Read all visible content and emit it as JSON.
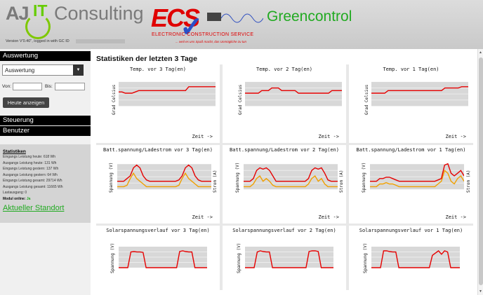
{
  "header": {
    "logo_aj": "AJ",
    "logo_it": "IT",
    "logo_consulting": "Consulting",
    "version_text": "Version V'0.40\", logged in with GC ID",
    "ecs_logo": "ECS",
    "ecs_subtitle": "ELECTRONIC CONSTRUCTION SERVICE",
    "ecs_tagline": "... weil es uns Spaß macht, das Unmögliche zu tun",
    "greencontrol": "Greencontrol"
  },
  "sidebar": {
    "auswertung_header": "Auswertung",
    "select_value": "Auswertung",
    "von_label": "Von:",
    "bis_label": "Bis:",
    "today_button": "Heute anzeigen",
    "steuerung": "Steuerung",
    "benutzer": "Benutzer",
    "stats": {
      "title": "Statistiken",
      "lines": [
        "Eingangs Leistung heute: 618 Wh",
        "Ausgangs Leistung heute: 131 Wh",
        "Eingangs Leistung gestern: 137 Wh",
        "Ausgangs Leistung gestern: 64 Wh",
        "Eingangs Leistung gesamt: 29714 Wh",
        "Ausgangs Leistung gesamt: 11665 Wh",
        "Lastausgang: 0"
      ],
      "modul_label": "Modul online:",
      "modul_value": "Ja"
    },
    "standort_link": "Aktueller Standort"
  },
  "main": {
    "title": "Statistiken der letzten 3 Tage",
    "panels": [
      {
        "title": "Temp. vor 3 Tag(en)",
        "ylabel": "Grad Celsius",
        "xlabel": "Zeit ->"
      },
      {
        "title": "Temp. vor 2 Tag(en)",
        "ylabel": "Grad Celsius",
        "xlabel": "Zeit ->"
      },
      {
        "title": "Temp. vor 1 Tag(en)",
        "ylabel": "Grad Celsius",
        "xlabel": "Zeit ->"
      },
      {
        "title": "Batt.spannung/Ladestrom vor 3 Tag(en)",
        "ylabel": "Spannung (V)",
        "ylabel_right": "Strom (A)",
        "xlabel": "Zeit ->"
      },
      {
        "title": "Batt.spannung/Ladestrom vor 2 Tag(en)",
        "ylabel": "Spannung (V)",
        "ylabel_right": "Strom (A)",
        "xlabel": "Zeit ->"
      },
      {
        "title": "Batt.spannung/Ladestrom vor 1 Tag(en)",
        "ylabel": "Spannung (V)",
        "ylabel_right": "Strom (A)",
        "xlabel": "Zeit ->"
      },
      {
        "title": "Solarspannungsverlauf vor 3 Tag(en)",
        "ylabel": "Spannung (V)"
      },
      {
        "title": "Solarspannungsverlauf vor 2 Tag(en)",
        "ylabel": "Spannung (V)"
      },
      {
        "title": "Solarspannungsverlauf vor 1 Tag(en)",
        "ylabel": "Spannung (V)"
      }
    ]
  },
  "colors": {
    "series_red": "#e60000",
    "series_orange": "#f0a000",
    "plot_band": "#d8d8d8",
    "brand_green": "#22aa22"
  },
  "chart_data": [
    {
      "type": "line",
      "series": [
        {
          "values": [
            0.55,
            0.55,
            0.5,
            0.5,
            0.5,
            0.55,
            0.6,
            0.6,
            0.6,
            0.6,
            0.6,
            0.6,
            0.6,
            0.6,
            0.6,
            0.6,
            0.6,
            0.6,
            0.6,
            0.6,
            0.6,
            0.75,
            0.75,
            0.75,
            0.75,
            0.75,
            0.75,
            0.75,
            0.75,
            0.75
          ]
        }
      ]
    },
    {
      "type": "line",
      "series": [
        {
          "values": [
            0.5,
            0.5,
            0.5,
            0.5,
            0.5,
            0.6,
            0.6,
            0.6,
            0.7,
            0.7,
            0.7,
            0.6,
            0.6,
            0.6,
            0.6,
            0.6,
            0.5,
            0.5,
            0.5,
            0.5,
            0.5,
            0.5,
            0.5,
            0.5,
            0.5,
            0.5,
            0.6,
            0.6,
            0.6,
            0.6
          ]
        }
      ]
    },
    {
      "type": "line",
      "series": [
        {
          "values": [
            0.5,
            0.5,
            0.5,
            0.5,
            0.5,
            0.6,
            0.6,
            0.6,
            0.6,
            0.6,
            0.6,
            0.6,
            0.6,
            0.6,
            0.6,
            0.6,
            0.6,
            0.6,
            0.6,
            0.6,
            0.6,
            0.6,
            0.7,
            0.7,
            0.7,
            0.7,
            0.7,
            0.75,
            0.75,
            0.75
          ]
        }
      ]
    },
    {
      "type": "line",
      "series": [
        {
          "values": [
            0.3,
            0.3,
            0.3,
            0.4,
            0.5,
            0.8,
            0.9,
            0.8,
            0.5,
            0.35,
            0.3,
            0.3,
            0.3,
            0.3,
            0.3,
            0.3,
            0.3,
            0.3,
            0.3,
            0.35,
            0.5,
            0.8,
            0.9,
            0.8,
            0.5,
            0.35,
            0.3,
            0.3,
            0.3,
            0.3
          ]
        },
        {
          "values": [
            0.1,
            0.1,
            0.1,
            0.15,
            0.4,
            0.6,
            0.4,
            0.3,
            0.2,
            0.1,
            0.1,
            0.1,
            0.1,
            0.1,
            0.1,
            0.1,
            0.1,
            0.1,
            0.1,
            0.15,
            0.4,
            0.6,
            0.4,
            0.3,
            0.2,
            0.1,
            0.1,
            0.1,
            0.1,
            0.1
          ]
        }
      ]
    },
    {
      "type": "line",
      "series": [
        {
          "values": [
            0.3,
            0.3,
            0.3,
            0.4,
            0.7,
            0.8,
            0.75,
            0.8,
            0.7,
            0.5,
            0.3,
            0.3,
            0.3,
            0.3,
            0.3,
            0.3,
            0.3,
            0.3,
            0.3,
            0.3,
            0.4,
            0.7,
            0.8,
            0.75,
            0.8,
            0.6,
            0.35,
            0.3,
            0.3,
            0.3
          ]
        },
        {
          "values": [
            0.1,
            0.1,
            0.1,
            0.2,
            0.4,
            0.5,
            0.3,
            0.4,
            0.3,
            0.15,
            0.1,
            0.1,
            0.1,
            0.1,
            0.1,
            0.1,
            0.1,
            0.1,
            0.1,
            0.1,
            0.2,
            0.4,
            0.5,
            0.3,
            0.4,
            0.2,
            0.1,
            0.1,
            0.1,
            0.1
          ]
        }
      ]
    },
    {
      "type": "line",
      "series": [
        {
          "values": [
            0.3,
            0.3,
            0.3,
            0.4,
            0.4,
            0.45,
            0.45,
            0.4,
            0.35,
            0.3,
            0.3,
            0.3,
            0.3,
            0.3,
            0.3,
            0.3,
            0.3,
            0.3,
            0.3,
            0.3,
            0.3,
            0.35,
            0.4,
            0.9,
            0.95,
            0.6,
            0.5,
            0.6,
            0.7,
            0.5
          ]
        },
        {
          "values": [
            0.1,
            0.1,
            0.1,
            0.2,
            0.2,
            0.25,
            0.2,
            0.2,
            0.15,
            0.1,
            0.1,
            0.1,
            0.1,
            0.1,
            0.1,
            0.1,
            0.1,
            0.1,
            0.1,
            0.1,
            0.1,
            0.2,
            0.3,
            0.7,
            0.6,
            0.3,
            0.2,
            0.4,
            0.5,
            0.3
          ]
        }
      ]
    },
    {
      "type": "line",
      "series": [
        {
          "values": [
            0,
            0,
            0,
            0,
            0.7,
            0.72,
            0.7,
            0.7,
            0.68,
            0,
            0,
            0,
            0,
            0,
            0,
            0,
            0,
            0,
            0,
            0,
            0.72,
            0.75,
            0.72,
            0.7,
            0.7,
            0,
            0,
            0,
            0,
            0
          ]
        }
      ]
    },
    {
      "type": "line",
      "series": [
        {
          "values": [
            0,
            0,
            0,
            0,
            0.7,
            0.75,
            0.72,
            0.7,
            0.7,
            0,
            0,
            0,
            0,
            0,
            0,
            0,
            0,
            0,
            0,
            0,
            0,
            0.72,
            0.75,
            0.75,
            0.72,
            0,
            0,
            0,
            0,
            0
          ]
        }
      ]
    },
    {
      "type": "line",
      "series": [
        {
          "values": [
            0,
            0,
            0,
            0,
            0.75,
            0.75,
            0.72,
            0.7,
            0.7,
            0,
            0,
            0,
            0,
            0,
            0,
            0,
            0,
            0,
            0,
            0,
            0.55,
            0.65,
            0.75,
            0.6,
            0.75,
            0.7,
            0,
            0,
            0,
            0
          ]
        }
      ]
    }
  ]
}
